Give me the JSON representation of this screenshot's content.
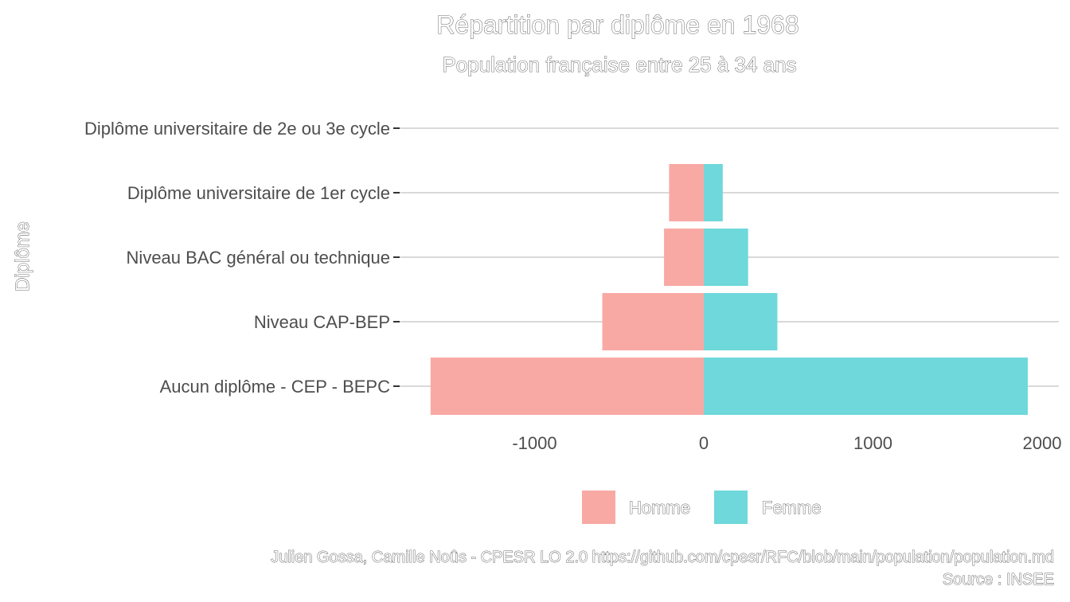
{
  "chart_data": {
    "type": "bar",
    "orientation": "horizontal",
    "stacked": "diverging",
    "title": "Répartition par diplôme en 1968",
    "subtitle": "Population française entre 25 à 34 ans",
    "ylabel": "Diplôme",
    "xlabel": "",
    "categories": [
      "Diplôme universitaire de 2e ou 3e cycle",
      "Diplôme universitaire de 1er cycle",
      "Niveau BAC général ou technique",
      "Niveau CAP-BEP",
      "Aucun diplôme - CEP - BEPC"
    ],
    "series": [
      {
        "name": "Homme",
        "color": "#F8A9A4",
        "values": [
          0,
          -205,
          -235,
          -600,
          -1615
        ]
      },
      {
        "name": "Femme",
        "color": "#6ED8DB",
        "values": [
          0,
          112,
          262,
          435,
          1915
        ]
      }
    ],
    "xlim": [
      -1800,
      2100
    ],
    "xticks": [
      -1000,
      0,
      1000,
      2000
    ],
    "xtick_labels": [
      "-1000",
      "0",
      "1000",
      "2000"
    ],
    "grid": "horizontal",
    "legend_position": "bottom",
    "caption_lines": [
      "Julien Gossa, Camille Noûs - CPESR LO 2.0 https://github.com/cpesr/RFC/blob/main/population/population.md",
      "Source : INSEE"
    ]
  }
}
